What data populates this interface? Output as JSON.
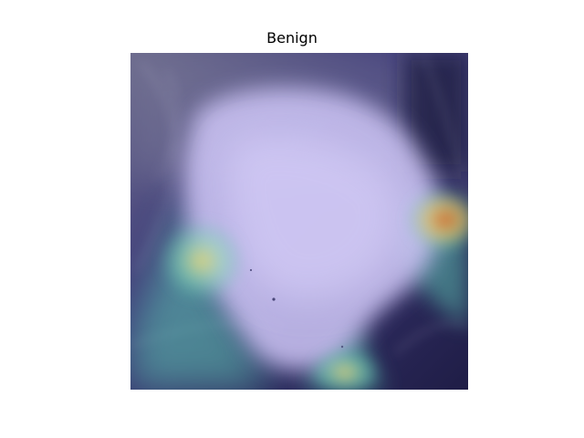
{
  "title": "Benign",
  "image": {
    "subject": "x-ray-with-heatmap-overlay",
    "colors": {
      "background": "#ffffff",
      "deep": "#1f1d46",
      "indigo": "#2f2c6b",
      "lavender": "#bdb5f0",
      "teal": "#63c9b8",
      "yellow": "#d8dc7a",
      "orange": "#d98a3a"
    }
  }
}
